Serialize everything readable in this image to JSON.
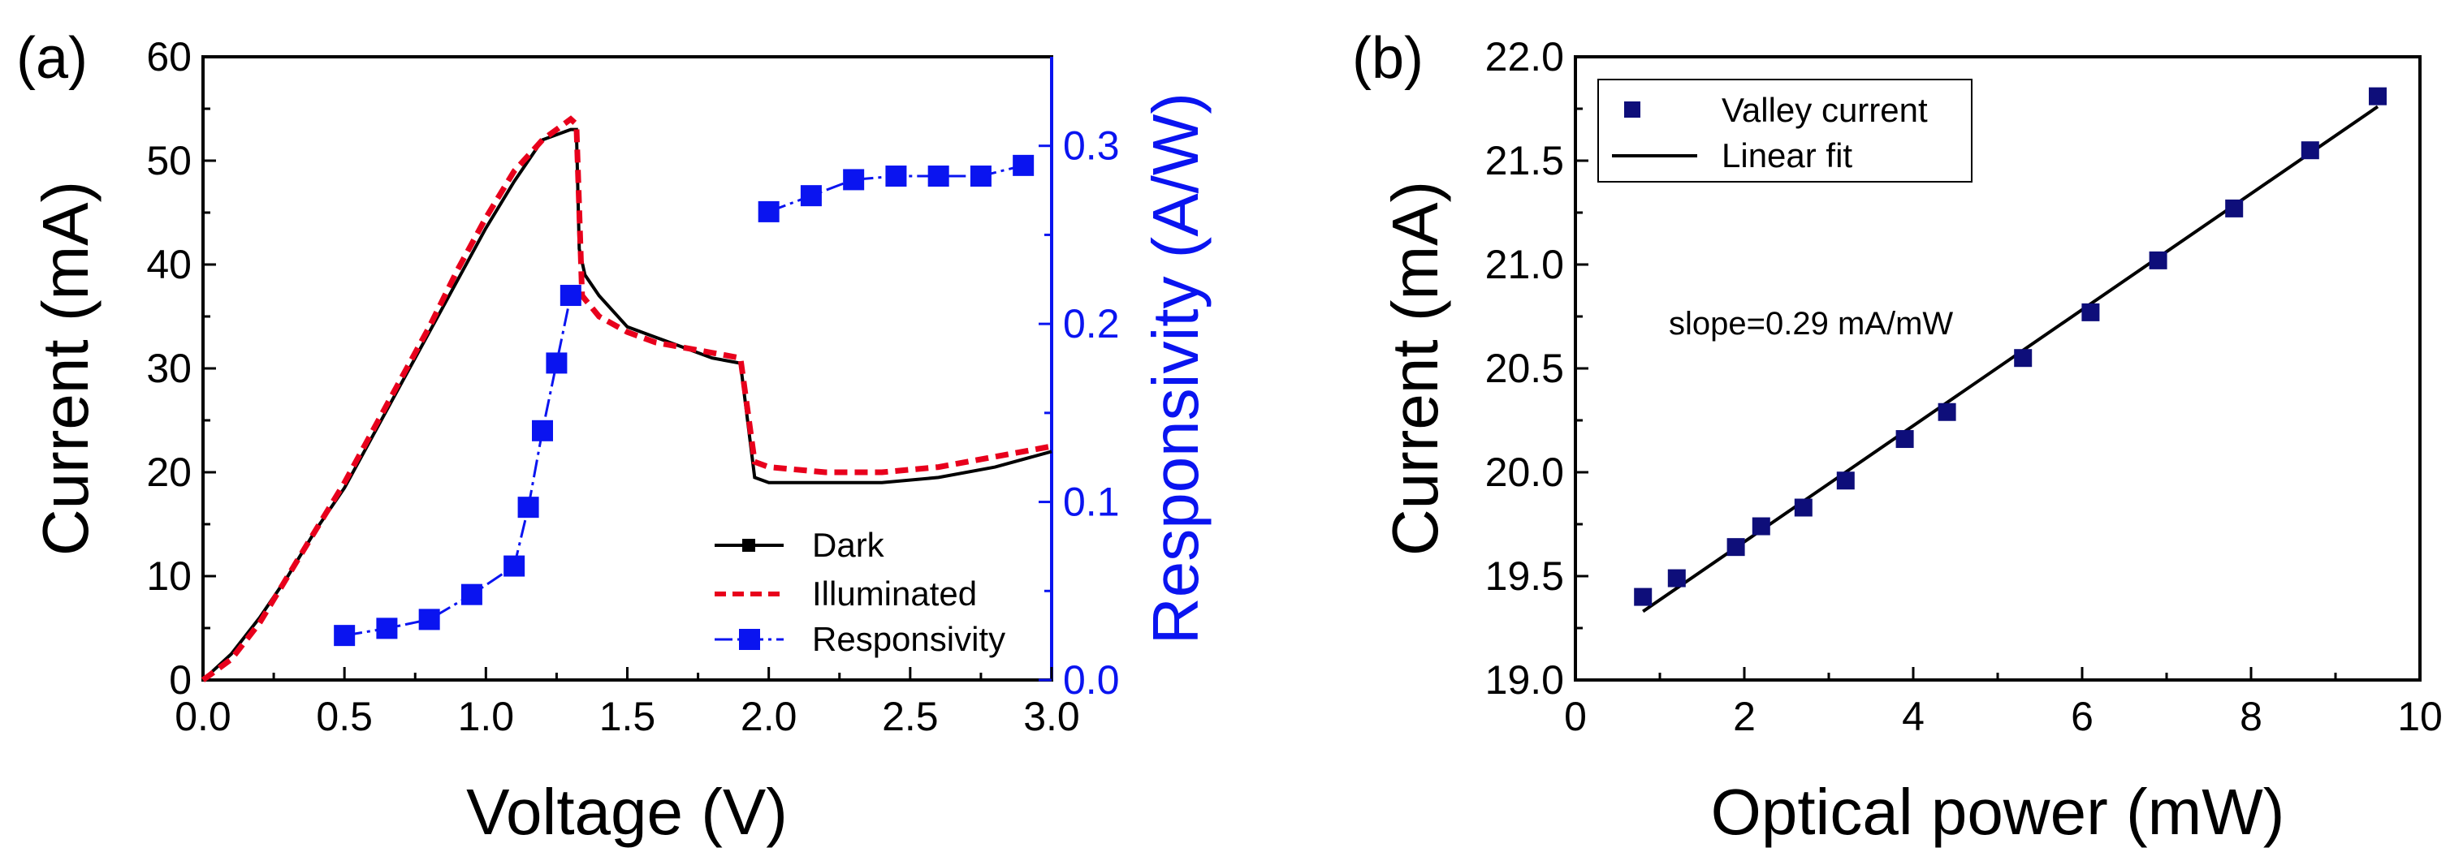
{
  "colors": {
    "dark": "#000000",
    "illuminated": "#e8001c",
    "responsivity": "#0a14f0",
    "valley": "#0e0e7a",
    "axis": "#000000"
  },
  "chart_data": [
    {
      "panel_label": "(a)",
      "type": "line",
      "xlabel": "Voltage (V)",
      "ylabel": "Current (mA)",
      "y2label": "Responsivity (A/W)",
      "xlim": [
        0,
        3.0
      ],
      "ylim": [
        0,
        60
      ],
      "y2lim": [
        0,
        0.35
      ],
      "xticks": [
        "0.0",
        "0.5",
        "1.0",
        "1.5",
        "2.0",
        "2.5",
        "3.0"
      ],
      "yticks": [
        "0",
        "10",
        "20",
        "30",
        "40",
        "50",
        "60"
      ],
      "y2ticks": [
        "0.0",
        "0.1",
        "0.2",
        "0.3"
      ],
      "legend": [
        "Dark",
        "Illuminated",
        "Responsivity"
      ],
      "legend_position": "lower-right",
      "series": [
        {
          "name": "Dark",
          "axis": "left",
          "style": "solid",
          "x": [
            0,
            0.1,
            0.2,
            0.3,
            0.4,
            0.5,
            0.6,
            0.7,
            0.8,
            0.9,
            1.0,
            1.1,
            1.2,
            1.3,
            1.32,
            1.33,
            1.35,
            1.4,
            1.5,
            1.6,
            1.7,
            1.8,
            1.9,
            1.95,
            2.0,
            2.2,
            2.4,
            2.6,
            2.8,
            3.0
          ],
          "y": [
            0,
            2.5,
            6,
            10,
            14.5,
            18.5,
            23.5,
            28.5,
            33.5,
            38.5,
            43.5,
            48,
            52,
            53,
            53,
            41.5,
            39,
            37,
            34,
            33,
            32,
            31,
            30.5,
            19.5,
            19,
            19,
            19,
            19.5,
            20.5,
            22
          ]
        },
        {
          "name": "Illuminated",
          "axis": "left",
          "style": "dashed",
          "x": [
            0,
            0.1,
            0.2,
            0.3,
            0.4,
            0.5,
            0.6,
            0.7,
            0.8,
            0.9,
            1.0,
            1.1,
            1.2,
            1.3,
            1.32,
            1.34,
            1.4,
            1.5,
            1.6,
            1.7,
            1.8,
            1.9,
            1.95,
            2.0,
            2.2,
            2.4,
            2.6,
            2.8,
            3.0
          ],
          "y": [
            0,
            2,
            5.5,
            10,
            14.5,
            19,
            24,
            29,
            34,
            39.5,
            44.5,
            49,
            52,
            54,
            53.5,
            37,
            35,
            33.5,
            32.5,
            32,
            31.5,
            31,
            21,
            20.5,
            20,
            20,
            20.5,
            21.5,
            22.5
          ]
        },
        {
          "name": "Responsivity",
          "axis": "right",
          "style": "dashdot-markers",
          "x": [
            0.5,
            0.65,
            0.8,
            0.95,
            1.1,
            1.15,
            1.2,
            1.25,
            1.3
          ],
          "y": [
            0.025,
            0.029,
            0.034,
            0.048,
            0.064,
            0.097,
            0.14,
            0.178,
            0.216
          ]
        },
        {
          "name": "Responsivity",
          "axis": "right",
          "style": "dashdot-markers",
          "x": [
            2.0,
            2.15,
            2.3,
            2.45,
            2.6,
            2.75,
            2.9
          ],
          "y": [
            0.263,
            0.272,
            0.281,
            0.283,
            0.283,
            0.283,
            0.289
          ]
        }
      ]
    },
    {
      "panel_label": "(b)",
      "type": "scatter",
      "xlabel": "Optical power (mW)",
      "ylabel": "Current (mA)",
      "xlim": [
        0,
        10
      ],
      "ylim": [
        19.0,
        22.0
      ],
      "xticks": [
        "0",
        "2",
        "4",
        "6",
        "8",
        "10"
      ],
      "yticks": [
        "19.0",
        "19.5",
        "20.0",
        "20.5",
        "21.0",
        "21.5",
        "22.0"
      ],
      "legend": [
        "Valley current",
        "Linear fit"
      ],
      "legend_position": "top-left",
      "annotation": "slope=0.29 mA/mW",
      "series": [
        {
          "name": "Valley current",
          "style": "markers",
          "x": [
            0.8,
            1.2,
            1.9,
            2.2,
            2.7,
            3.2,
            3.9,
            4.4,
            5.3,
            6.1,
            6.9,
            7.8,
            8.7,
            9.5
          ],
          "y": [
            19.4,
            19.49,
            19.64,
            19.74,
            19.83,
            19.96,
            20.16,
            20.29,
            20.55,
            20.77,
            21.02,
            21.27,
            21.55,
            21.81
          ]
        },
        {
          "name": "Linear fit",
          "style": "solid",
          "x": [
            0.8,
            9.5
          ],
          "y": [
            19.33,
            21.76
          ]
        }
      ]
    }
  ]
}
